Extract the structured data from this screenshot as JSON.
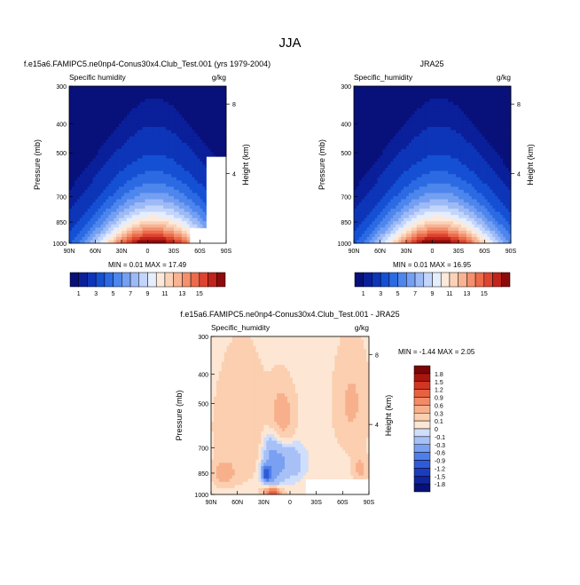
{
  "page": {
    "title": "JJA"
  },
  "colors": {
    "abs_scale": [
      "#08107a",
      "#0a1f9a",
      "#0d35b8",
      "#1550d4",
      "#2c6ae3",
      "#4d86ec",
      "#749ff2",
      "#9dbaf6",
      "#c3d5fa",
      "#e5eefd",
      "#fde9da",
      "#fbd2b8",
      "#f8b393",
      "#f3906d",
      "#ec6b4b",
      "#dd4530",
      "#c0241a",
      "#8e0b0b"
    ],
    "diff_scale": [
      "#08107a",
      "#10249c",
      "#1c3cbe",
      "#2f5bd9",
      "#4e7ee9",
      "#7aa0f2",
      "#a7c1f7",
      "#cfdefb",
      "#fde6d3",
      "#fbcfb0",
      "#f8b08c",
      "#f28a67",
      "#e8613f",
      "#d03622",
      "#a8160e",
      "#7a0606"
    ]
  },
  "panels": [
    {
      "title": "f.e15a6.FAMIPC5.ne0np4-Conus30x4.Club_Test.001 (yrs 1979-2004)",
      "left_label": "Specific humidity",
      "right_label": "g/kg",
      "stats": "MIN =  0.01  MAX =  17.49"
    },
    {
      "title": "JRA25",
      "left_label": "Specific_humidity",
      "right_label": "g/kg",
      "stats": "MIN =  0.01  MAX =  16.95"
    },
    {
      "title": "f.e15a6.FAMIPC5.ne0np4-Conus30x4.Club_Test.001 - JRA25",
      "left_label": "Specific_humidity",
      "right_label": "g/kg",
      "stats": "MIN = -1.44  MAX =  2.05"
    }
  ],
  "chart_data": [
    {
      "type": "heatmap",
      "title": "f.e15a6.FAMIPC5.ne0np4-Conus30x4.Club_Test.001 (yrs 1979-2004)",
      "xlabel": "",
      "ylabel": "Pressure (mb)",
      "y2label": "Height (km)",
      "x_ticks": [
        "90N",
        "60N",
        "30N",
        "0",
        "30S",
        "60S",
        "90S"
      ],
      "x_values": [
        90,
        60,
        30,
        0,
        -30,
        -60,
        -90
      ],
      "y_ticks": [
        "300",
        "400",
        "500",
        "700",
        "850",
        "1000"
      ],
      "y_values": [
        300,
        400,
        500,
        700,
        850,
        1000
      ],
      "y2_ticks": [
        "8",
        "4"
      ],
      "y2_values": [
        8,
        4
      ],
      "colorbar_labels": [
        "1",
        "3",
        "5",
        "7",
        "9",
        "11",
        "13",
        "15"
      ],
      "colorbar_levels": [
        0.5,
        1,
        2,
        3,
        4,
        5,
        6,
        7,
        8,
        9,
        10,
        11,
        12,
        13,
        14,
        15,
        16
      ],
      "peak_lat": -8,
      "max": 17.49,
      "min": 0.01
    },
    {
      "type": "heatmap",
      "title": "JRA25",
      "xlabel": "",
      "ylabel": "Pressure (mb)",
      "y2label": "Height (km)",
      "x_ticks": [
        "90N",
        "60N",
        "30N",
        "0",
        "30S",
        "60S",
        "90S"
      ],
      "x_values": [
        90,
        60,
        30,
        0,
        -30,
        -60,
        -90
      ],
      "y_ticks": [
        "300",
        "400",
        "500",
        "700",
        "850",
        "1000"
      ],
      "y_values": [
        300,
        400,
        500,
        700,
        850,
        1000
      ],
      "y2_ticks": [
        "8",
        "4"
      ],
      "y2_values": [
        8,
        4
      ],
      "colorbar_labels": [
        "1",
        "3",
        "5",
        "7",
        "9",
        "11",
        "13",
        "15"
      ],
      "colorbar_levels": [
        0.5,
        1,
        2,
        3,
        4,
        5,
        6,
        7,
        8,
        9,
        10,
        11,
        12,
        13,
        14,
        15,
        16
      ],
      "peak_lat": -8,
      "max": 16.95,
      "min": 0.01
    },
    {
      "type": "heatmap",
      "title": "f.e15a6.FAMIPC5.ne0np4-Conus30x4.Club_Test.001 - JRA25",
      "xlabel": "",
      "ylabel": "Pressure (mb)",
      "y2label": "Height (km)",
      "x_ticks": [
        "90N",
        "60N",
        "30N",
        "0",
        "30S",
        "60S",
        "90S"
      ],
      "x_values": [
        90,
        60,
        30,
        0,
        -30,
        -60,
        -90
      ],
      "y_ticks": [
        "300",
        "400",
        "500",
        "700",
        "850",
        "1000"
      ],
      "y_values": [
        300,
        400,
        500,
        700,
        850,
        1000
      ],
      "y2_ticks": [
        "8",
        "4"
      ],
      "y2_values": [
        8,
        4
      ],
      "colorbar_labels": [
        "1.8",
        "1.5",
        "1.2",
        "0.9",
        "0.6",
        "0.3",
        "0.1",
        "0",
        "-0.1",
        "-0.3",
        "-0.6",
        "-0.9",
        "-1.2",
        "-1.5",
        "-1.8"
      ],
      "colorbar_levels": [
        -1.8,
        -1.5,
        -1.2,
        -0.9,
        -0.6,
        -0.3,
        -0.1,
        0,
        0.1,
        0.3,
        0.6,
        0.9,
        1.2,
        1.5,
        1.8
      ],
      "max": 2.05,
      "min": -1.44
    }
  ]
}
